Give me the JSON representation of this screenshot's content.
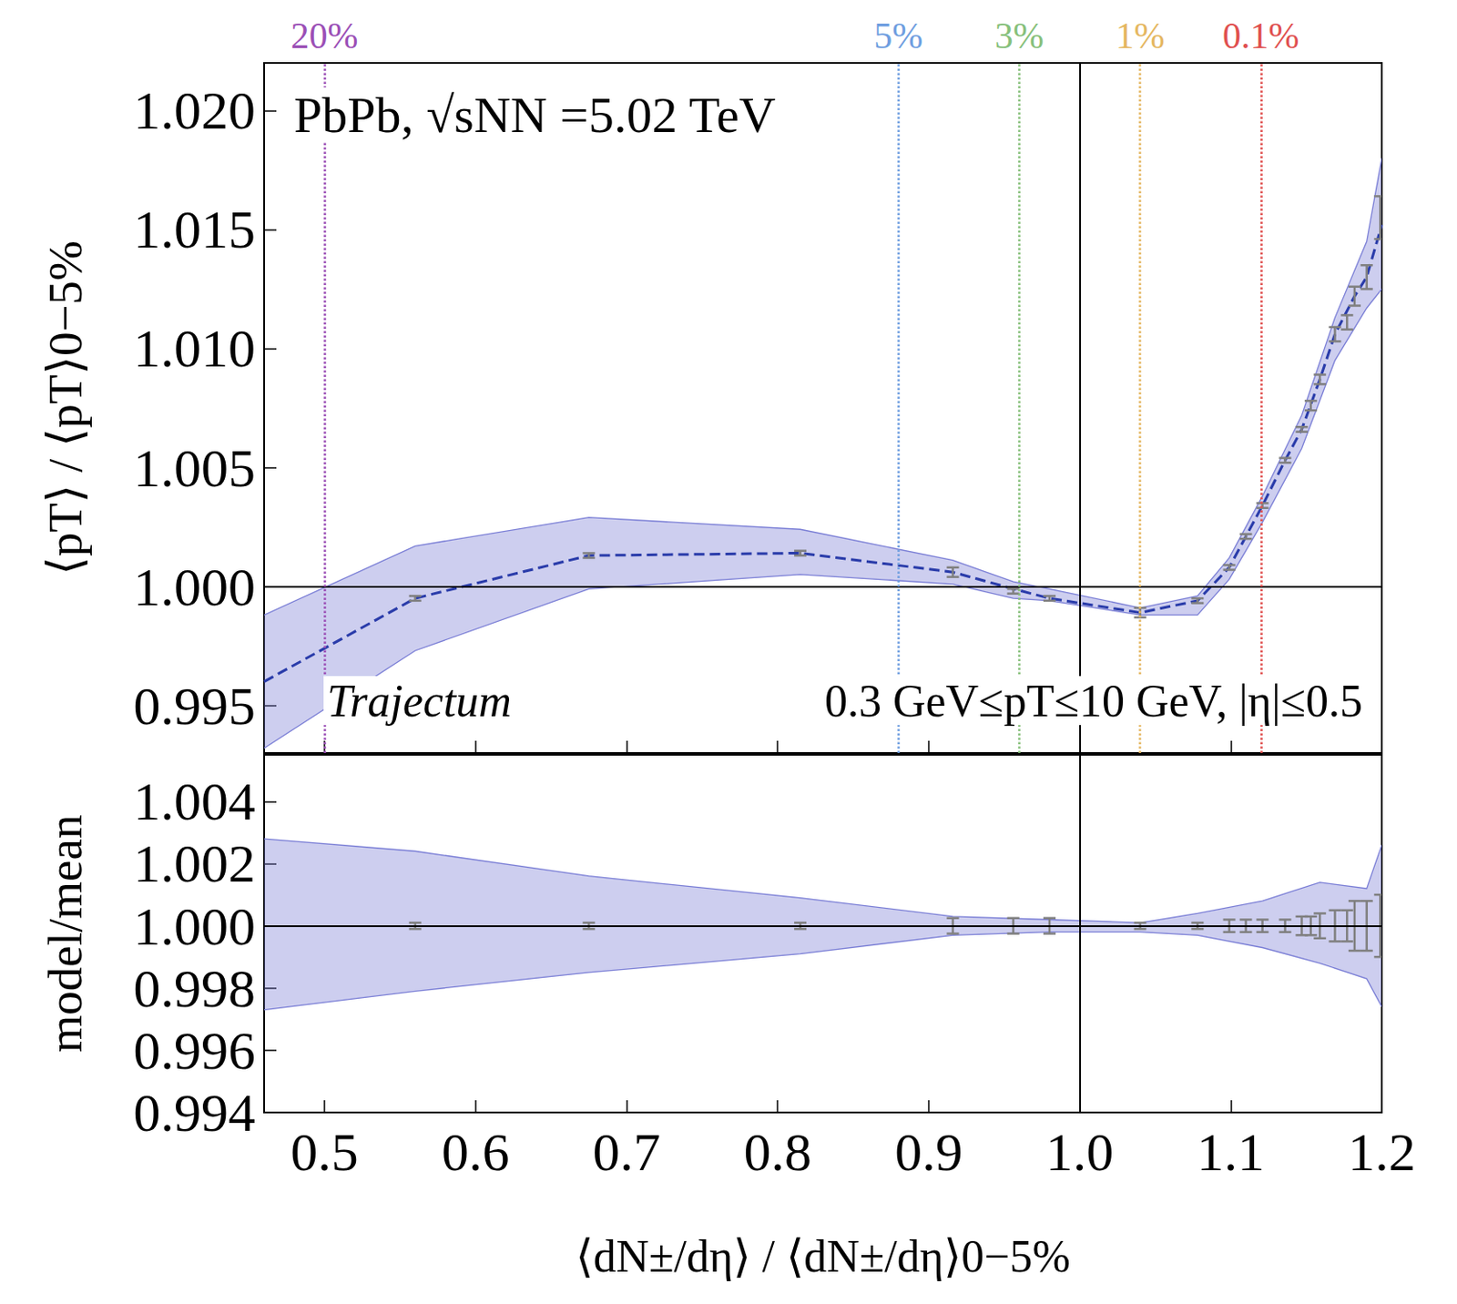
{
  "chart_data": [
    {
      "type": "line",
      "ylabel": "⟨pT⟩ / ⟨pT⟩0−5%",
      "xlim": [
        0.46,
        1.2
      ],
      "xticks": [
        0.5,
        0.6,
        0.7,
        0.8,
        0.9,
        {
          "value": 1,
          "label": "1.0"
        },
        1.1,
        1.2
      ],
      "ylim": [
        0.993,
        1.022
      ],
      "yticks": [
        0.995,
        {
          "value": 1,
          "label": "1.000"
        },
        1.005,
        {
          "value": 1.01,
          "label": "1.010"
        },
        1.015,
        {
          "value": 1.02,
          "label": "1.020"
        }
      ],
      "tick_labels": "y",
      "grid": false,
      "annotations": [
        "PbPb, √sNN =5.02 TeV",
        "Trajectum",
        "0.3 GeV≤pT≤10 GeV, |η|≤0.5"
      ],
      "reference_lines": {
        "x": 1,
        "y": 1
      },
      "centrality_lines": [
        {
          "x": 0.5,
          "label": "20%",
          "color": "#9b4fb6"
        },
        {
          "x": 0.88,
          "label": "5%",
          "color": "#6f9ee0"
        },
        {
          "x": 0.956,
          "label": "3%",
          "color": "#86c07a"
        },
        {
          "x": 1.038,
          "label": "1%",
          "color": "#e5b761"
        },
        {
          "x": 1.117,
          "label": "0.1%",
          "color": "#e0504f"
        }
      ],
      "series": [
        {
          "type": "band",
          "color": "#7b7fd6",
          "x": [
            0.46,
            0.56,
            0.675,
            0.815,
            0.916,
            0.956,
            0.98,
            1.04,
            1.078,
            1.099,
            1.121,
            1.147,
            1.169,
            1.19,
            1.2
          ],
          "lower": [
            0.9932,
            0.9973,
            0.9999,
            1.0005,
            1.0001,
            0.9995,
            0.9994,
            0.9988,
            0.9988,
            1.0003,
            1.0027,
            1.0058,
            1.0095,
            1.0117,
            1.0125
          ],
          "upper": [
            0.9988,
            1.0017,
            1.0029,
            1.0024,
            1.0011,
            1.0002,
            0.9999,
            0.9991,
            0.9996,
            1.0012,
            1.0038,
            1.0072,
            1.0113,
            1.0145,
            1.018
          ]
        },
        {
          "type": "line",
          "line_style": "dashed",
          "color": "#2a3caa",
          "x": [
            0.46,
            0.56,
            0.675,
            0.815,
            0.916,
            0.956,
            0.98,
            1.04,
            1.078,
            1.099,
            1.11,
            1.121,
            1.136,
            1.147,
            1.159,
            1.169,
            1.182,
            1.19,
            1.2
          ],
          "values": [
            0.996,
            0.9995,
            1.0013,
            1.0014,
            1.0006,
            0.9999,
            0.9995,
            0.9989,
            0.9994,
            1.0008,
            1.0021,
            1.0034,
            1.0053,
            1.0066,
            1.0087,
            1.0106,
            1.0122,
            1.013,
            1.0152
          ]
        },
        {
          "type": "scatter",
          "marker": "errorbar",
          "color": "#808080",
          "x": [
            0.56,
            0.675,
            0.815,
            0.916,
            0.956,
            0.98,
            1.04,
            1.078,
            1.099,
            1.11,
            1.121,
            1.136,
            1.147,
            1.153,
            1.159,
            1.169,
            1.177,
            1.182,
            1.19,
            1.199
          ],
          "values": [
            0.9995,
            1.0013,
            1.0014,
            1.0006,
            0.9998,
            0.9995,
            0.9989,
            0.9994,
            1.0008,
            1.0021,
            1.0034,
            1.0053,
            1.0066,
            1.0076,
            1.0087,
            1.0106,
            1.0111,
            1.0122,
            1.013,
            1.0155
          ],
          "errors": [
            0.0001,
            0.0001,
            0.0001,
            0.0002,
            0.0001,
            0.0001,
            0.0002,
            0.0001,
            0.0001,
            0.0001,
            0.0001,
            0.0001,
            0.0001,
            0.0002,
            0.0002,
            0.0003,
            0.0003,
            0.0004,
            0.0005,
            0.0009
          ]
        }
      ]
    },
    {
      "type": "line",
      "ylabel": "model/mean",
      "xlabel": "⟨dN±/dη⟩ / ⟨dN±/dη⟩0−5%",
      "xlim": [
        0.46,
        1.2
      ],
      "xticks": [
        0.5,
        0.6,
        0.7,
        0.8,
        0.9,
        {
          "value": 1,
          "label": "1.0"
        },
        1.1,
        1.2
      ],
      "ylim": [
        0.994,
        1.0055
      ],
      "yticks": [
        0.994,
        0.996,
        0.998,
        {
          "value": 1,
          "label": "1.000"
        },
        1.002,
        1.004
      ],
      "grid": false,
      "reference_lines": {
        "x": 1,
        "y": 1
      },
      "series": [
        {
          "type": "band",
          "color": "#7b7fd6",
          "x": [
            0.46,
            0.56,
            0.675,
            0.815,
            0.916,
            0.98,
            1.04,
            1.078,
            1.121,
            1.159,
            1.19,
            1.2
          ],
          "lower": [
            0.9973,
            0.9979,
            0.9985,
            0.9991,
            0.9997,
            0.9998,
            0.9998,
            0.9997,
            0.9993,
            0.9988,
            0.9983,
            0.9974
          ],
          "upper": [
            1.0028,
            1.0024,
            1.0016,
            1.0009,
            1.0003,
            1.0002,
            1.0001,
            1.0004,
            1.0008,
            1.0014,
            1.0012,
            1.0026
          ]
        },
        {
          "type": "scatter",
          "marker": "errorbar",
          "color": "#808080",
          "x": [
            0.56,
            0.675,
            0.815,
            0.916,
            0.956,
            0.98,
            1.04,
            1.078,
            1.099,
            1.11,
            1.121,
            1.136,
            1.147,
            1.153,
            1.159,
            1.169,
            1.177,
            1.182,
            1.19,
            1.199
          ],
          "values": [
            1,
            1,
            1,
            1,
            1,
            1,
            1,
            1,
            1,
            1,
            1,
            1,
            1,
            1,
            1,
            1,
            1,
            1,
            1,
            1
          ],
          "errors": [
            0.0001,
            0.0001,
            0.0001,
            0.00025,
            0.00025,
            0.00025,
            0.0001,
            0.0001,
            0.0002,
            0.0002,
            0.0002,
            0.0002,
            0.0003,
            0.0003,
            0.0004,
            0.0005,
            0.0005,
            0.0008,
            0.0008,
            0.001
          ]
        }
      ]
    }
  ]
}
